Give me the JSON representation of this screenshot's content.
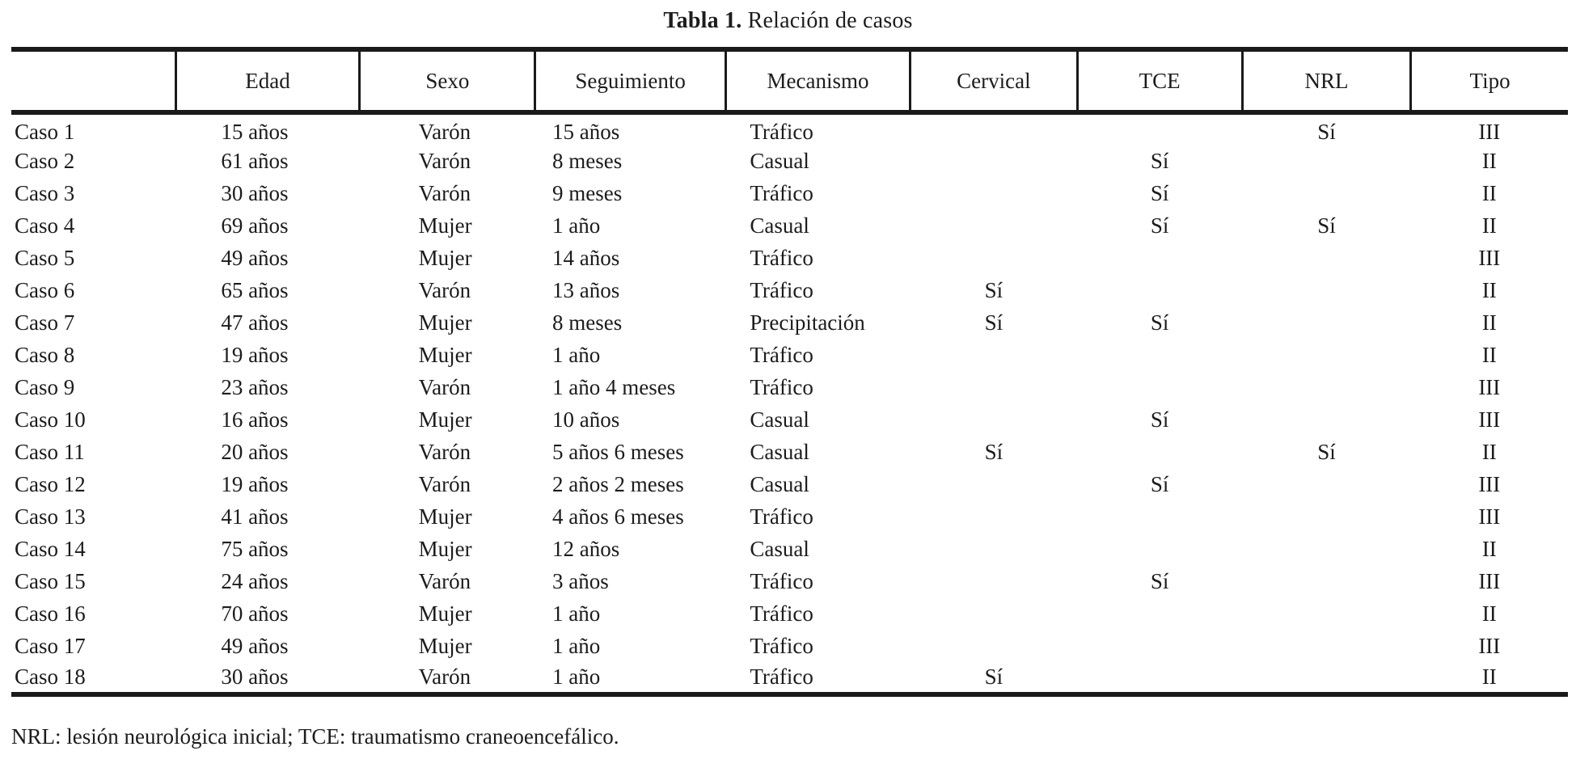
{
  "title": {
    "label": "Tabla 1.",
    "text": " Relación de casos"
  },
  "table": {
    "columns": [
      "",
      "Edad",
      "Sexo",
      "Seguimiento",
      "Mecanismo",
      "Cervical",
      "TCE",
      "NRL",
      "Tipo"
    ],
    "column_keys": [
      "caso",
      "edad",
      "sexo",
      "seguimiento",
      "mecanismo",
      "cervical",
      "tce",
      "nrl",
      "tipo"
    ],
    "rows": [
      [
        "Caso 1",
        "15 años",
        "Varón",
        "15 años",
        "Tráfico",
        "",
        "",
        "Sí",
        "III"
      ],
      [
        "Caso 2",
        "61 años",
        "Varón",
        "8 meses",
        "Casual",
        "",
        "Sí",
        "",
        "II"
      ],
      [
        "Caso 3",
        "30 años",
        "Varón",
        "9 meses",
        "Tráfico",
        "",
        "Sí",
        "",
        "II"
      ],
      [
        "Caso 4",
        "69 años",
        "Mujer",
        "1 año",
        "Casual",
        "",
        "Sí",
        "Sí",
        "II"
      ],
      [
        "Caso 5",
        "49 años",
        "Mujer",
        "14 años",
        "Tráfico",
        "",
        "",
        "",
        "III"
      ],
      [
        "Caso 6",
        "65 años",
        "Varón",
        "13 años",
        "Tráfico",
        "Sí",
        "",
        "",
        "II"
      ],
      [
        "Caso 7",
        "47 años",
        "Mujer",
        "8 meses",
        "Precipitación",
        "Sí",
        "Sí",
        "",
        "II"
      ],
      [
        "Caso 8",
        "19 años",
        "Mujer",
        "1 año",
        "Tráfico",
        "",
        "",
        "",
        "II"
      ],
      [
        "Caso 9",
        "23 años",
        "Varón",
        "1 año 4 meses",
        "Tráfico",
        "",
        "",
        "",
        "III"
      ],
      [
        "Caso 10",
        "16 años",
        "Mujer",
        "10 años",
        "Casual",
        "",
        "Sí",
        "",
        "III"
      ],
      [
        "Caso 11",
        "20 años",
        "Varón",
        "5 años 6 meses",
        "Casual",
        "Sí",
        "",
        "Sí",
        "II"
      ],
      [
        "Caso 12",
        "19 años",
        "Varón",
        "2 años 2 meses",
        "Casual",
        "",
        "Sí",
        "",
        "III"
      ],
      [
        "Caso 13",
        "41 años",
        "Mujer",
        "4 años 6 meses",
        "Tráfico",
        "",
        "",
        "",
        "III"
      ],
      [
        "Caso 14",
        "75 años",
        "Mujer",
        "12 años",
        "Casual",
        "",
        "",
        "",
        "II"
      ],
      [
        "Caso 15",
        "24 años",
        "Varón",
        "3 años",
        "Tráfico",
        "",
        "Sí",
        "",
        "III"
      ],
      [
        "Caso 16",
        "70 años",
        "Mujer",
        "1 año",
        "Tráfico",
        "",
        "",
        "",
        "II"
      ],
      [
        "Caso 17",
        "49 años",
        "Mujer",
        "1 año",
        "Tráfico",
        "",
        "",
        "",
        "III"
      ],
      [
        "Caso 18",
        "30 años",
        "Varón",
        "1 año",
        "Tráfico",
        "Sí",
        "",
        "",
        "II"
      ]
    ]
  },
  "footnote": "NRL: lesión neurológica inicial; TCE: traumatismo craneoencefálico."
}
